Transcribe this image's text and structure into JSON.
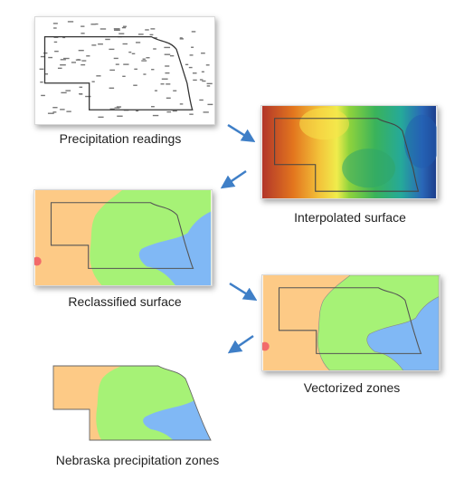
{
  "captions": {
    "readings": "Precipitation readings",
    "interpolated": "Interpolated surface",
    "reclassified": "Reclassified surface",
    "vectorized": "Vectorized zones",
    "zones": "Nebraska precipitation zones"
  },
  "colors": {
    "arrow": "#3f7fc7",
    "zone_dry": "#fdca86",
    "zone_mid": "#a6f276",
    "zone_wet": "#80b8f5",
    "outline": "#555555"
  },
  "icons": {
    "step_arrow": "down-left-arrow",
    "step_arrow_alt": "down-right-arrow"
  }
}
